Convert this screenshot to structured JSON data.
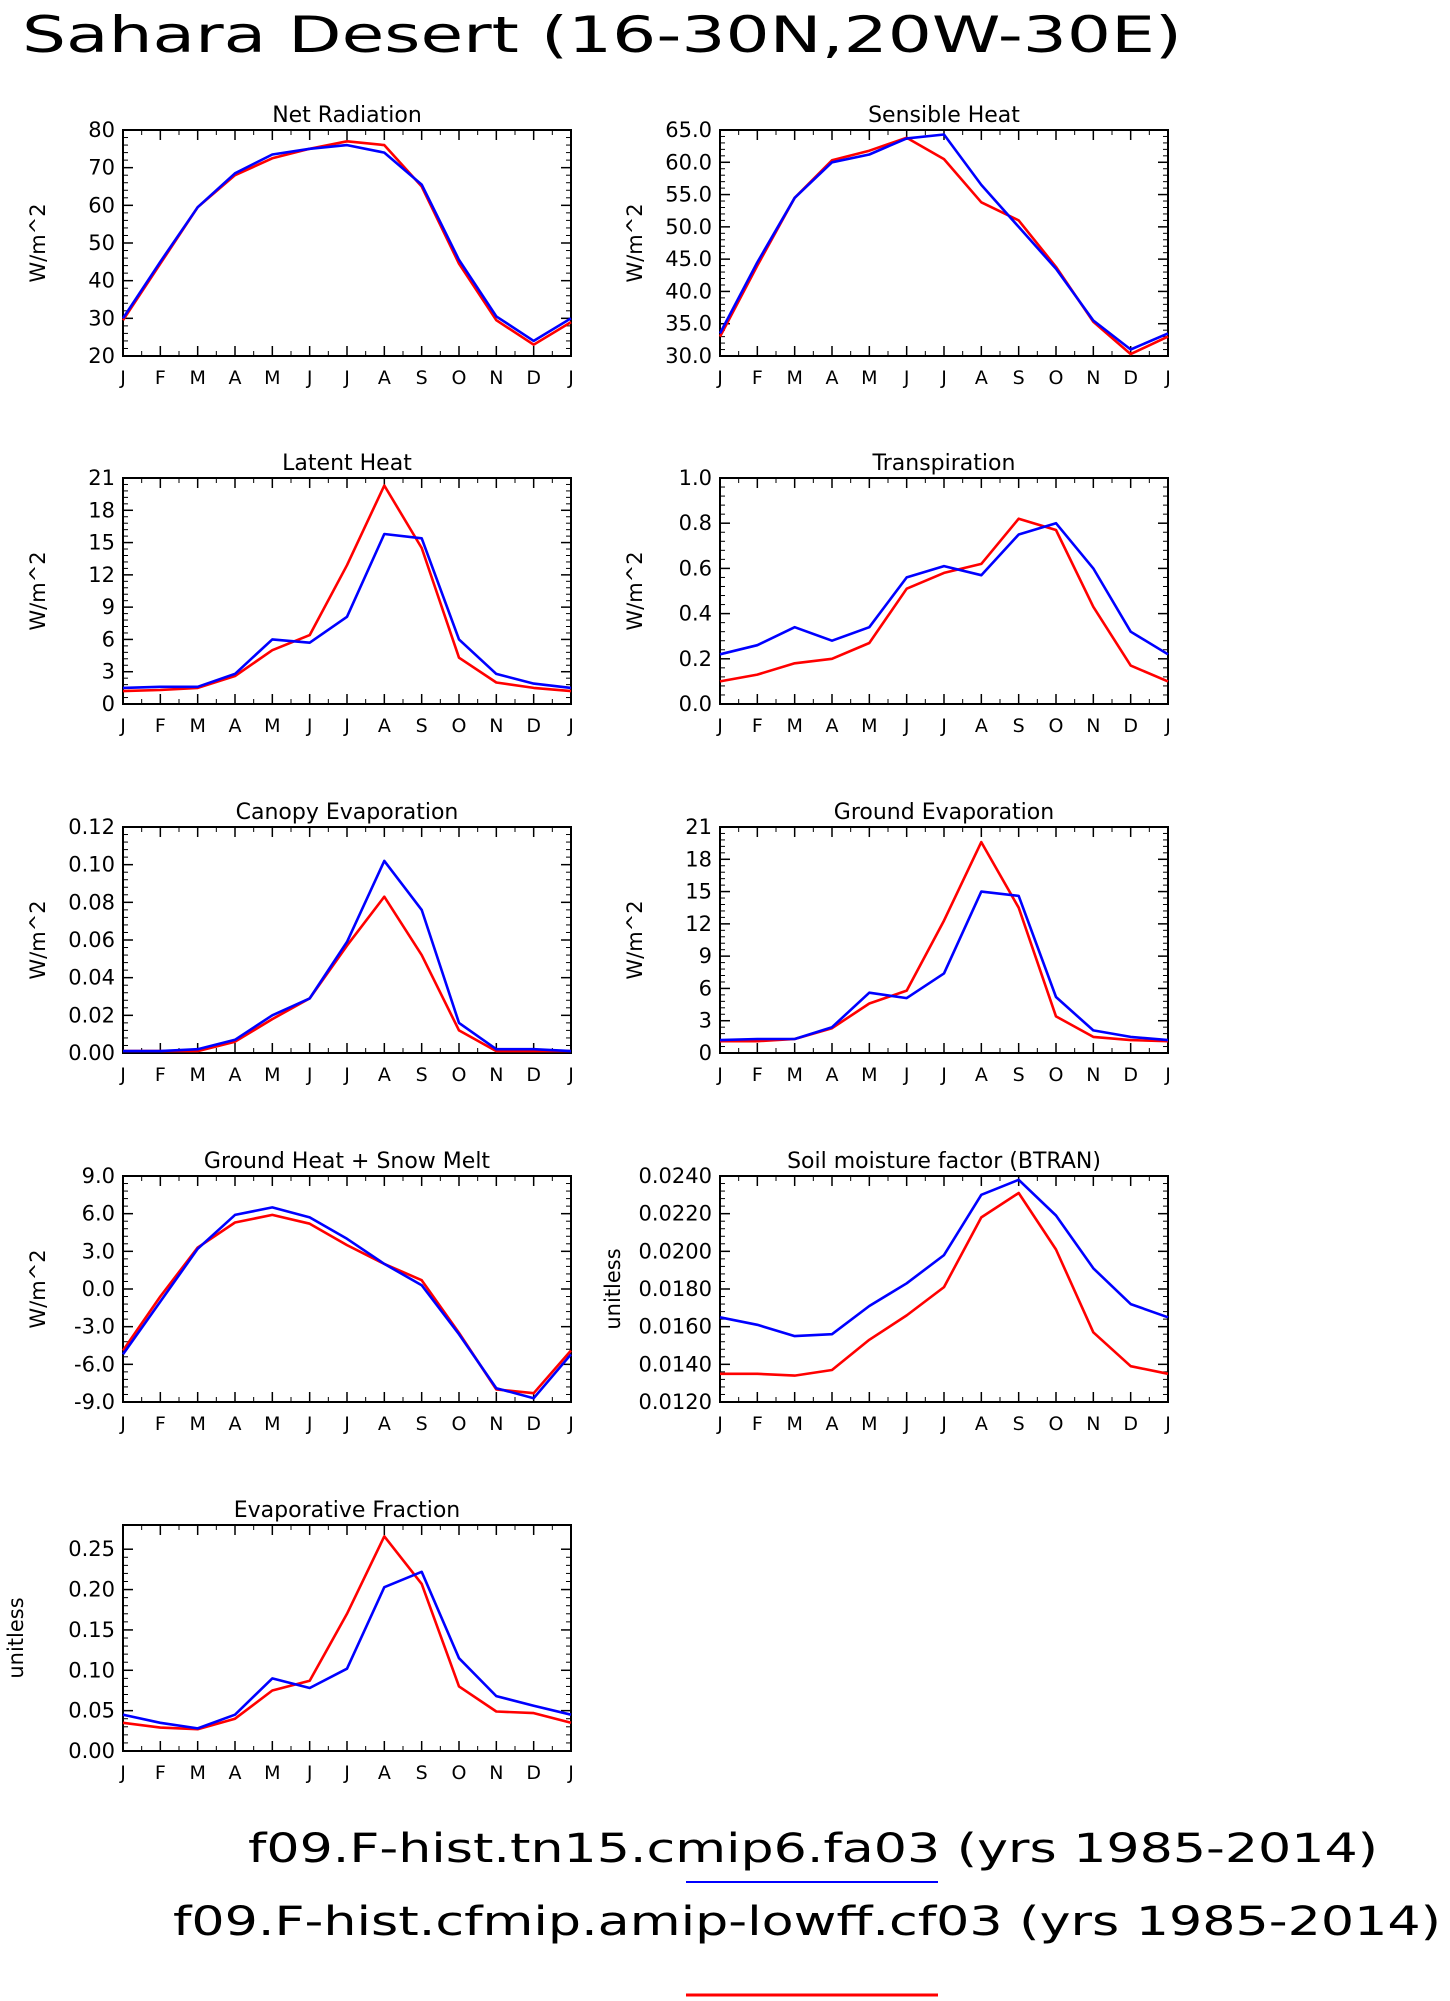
{
  "title": "Sahara Desert (16-30N,20W-30E)",
  "months": [
    "J",
    "F",
    "M",
    "A",
    "M",
    "J",
    "J",
    "A",
    "S",
    "O",
    "N",
    "D",
    "J"
  ],
  "legend": [
    {
      "label": "f09.F-hist.tn15.cmip6.fa03 (yrs 1985-2014)",
      "color": "#0000ff"
    },
    {
      "label": "f09.F-hist.cfmip.amip-lowff.cf03 (yrs 1985-2014)",
      "color": "#ff0000"
    }
  ],
  "colors": {
    "blue": "#0000ff",
    "red": "#ff0000"
  },
  "chart_data": [
    {
      "type": "line",
      "title": "Net Radiation",
      "ylabel": "W/m^2",
      "ylim": [
        20,
        80
      ],
      "ticks": [
        20,
        30,
        40,
        50,
        60,
        70,
        80
      ],
      "decimals": 0,
      "categories": [
        "J",
        "F",
        "M",
        "A",
        "M",
        "J",
        "J",
        "A",
        "S",
        "O",
        "N",
        "D",
        "J"
      ],
      "series": [
        {
          "color": "#0000ff",
          "values": [
            30,
            45,
            59.5,
            68.5,
            73.5,
            75,
            76,
            74,
            65.5,
            45.5,
            30.5,
            24,
            30
          ]
        },
        {
          "color": "#ff0000",
          "values": [
            29.5,
            44.5,
            59.5,
            68,
            72.5,
            75,
            77,
            76,
            65,
            44.5,
            29.5,
            23,
            29
          ]
        }
      ]
    },
    {
      "type": "line",
      "title": "Sensible Heat",
      "ylabel": "W/m^2",
      "ylim": [
        30,
        65
      ],
      "ticks": [
        30,
        35,
        40,
        45,
        50,
        55,
        60,
        65
      ],
      "decimals": 1,
      "categories": [
        "J",
        "F",
        "M",
        "A",
        "M",
        "J",
        "J",
        "A",
        "S",
        "O",
        "N",
        "D",
        "J"
      ],
      "series": [
        {
          "color": "#0000ff",
          "values": [
            33.5,
            44.5,
            54.5,
            60,
            61.2,
            63.7,
            64.3,
            56.5,
            50,
            43.5,
            35.5,
            31,
            33.5
          ]
        },
        {
          "color": "#ff0000",
          "values": [
            33,
            44,
            54.5,
            60.3,
            61.8,
            63.8,
            60.5,
            53.8,
            51,
            43.8,
            35.3,
            30.3,
            33
          ]
        }
      ]
    },
    {
      "type": "line",
      "title": "Latent Heat",
      "ylabel": "W/m^2",
      "ylim": [
        0,
        21
      ],
      "ticks": [
        0,
        3,
        6,
        9,
        12,
        15,
        18,
        21
      ],
      "decimals": 0,
      "categories": [
        "J",
        "F",
        "M",
        "A",
        "M",
        "J",
        "J",
        "A",
        "S",
        "O",
        "N",
        "D",
        "J"
      ],
      "series": [
        {
          "color": "#0000ff",
          "values": [
            1.5,
            1.6,
            1.6,
            2.8,
            6,
            5.7,
            8.1,
            15.8,
            15.4,
            6,
            2.8,
            1.9,
            1.5
          ]
        },
        {
          "color": "#ff0000",
          "values": [
            1.2,
            1.3,
            1.5,
            2.6,
            5,
            6.4,
            12.9,
            20.3,
            14.5,
            4.3,
            2,
            1.5,
            1.2
          ]
        }
      ]
    },
    {
      "type": "line",
      "title": "Transpiration",
      "ylabel": "W/m^2",
      "ylim": [
        0,
        1
      ],
      "ticks": [
        0,
        0.2,
        0.4,
        0.6,
        0.8,
        1.0
      ],
      "decimals": 1,
      "categories": [
        "J",
        "F",
        "M",
        "A",
        "M",
        "J",
        "J",
        "A",
        "S",
        "O",
        "N",
        "D",
        "J"
      ],
      "series": [
        {
          "color": "#0000ff",
          "values": [
            0.22,
            0.26,
            0.34,
            0.28,
            0.34,
            0.56,
            0.61,
            0.57,
            0.75,
            0.8,
            0.6,
            0.32,
            0.22
          ]
        },
        {
          "color": "#ff0000",
          "values": [
            0.1,
            0.13,
            0.18,
            0.2,
            0.27,
            0.51,
            0.58,
            0.62,
            0.82,
            0.77,
            0.43,
            0.17,
            0.1
          ]
        }
      ]
    },
    {
      "type": "line",
      "title": "Canopy Evaporation",
      "ylabel": "W/m^2",
      "ylim": [
        0,
        0.12
      ],
      "ticks": [
        0,
        0.02,
        0.04,
        0.06,
        0.08,
        0.1,
        0.12
      ],
      "decimals": 2,
      "categories": [
        "J",
        "F",
        "M",
        "A",
        "M",
        "J",
        "J",
        "A",
        "S",
        "O",
        "N",
        "D",
        "J"
      ],
      "series": [
        {
          "color": "#0000ff",
          "values": [
            0.001,
            0.001,
            0.002,
            0.007,
            0.02,
            0.029,
            0.059,
            0.102,
            0.076,
            0.016,
            0.002,
            0.002,
            0.001
          ]
        },
        {
          "color": "#ff0000",
          "values": [
            0.001,
            0.001,
            0.001,
            0.006,
            0.018,
            0.029,
            0.057,
            0.083,
            0.052,
            0.012,
            0.001,
            0.001,
            0.001
          ]
        }
      ]
    },
    {
      "type": "line",
      "title": "Ground Evaporation",
      "ylabel": "W/m^2",
      "ylim": [
        0,
        21
      ],
      "ticks": [
        0,
        3,
        6,
        9,
        12,
        15,
        18,
        21
      ],
      "decimals": 0,
      "categories": [
        "J",
        "F",
        "M",
        "A",
        "M",
        "J",
        "J",
        "A",
        "S",
        "O",
        "N",
        "D",
        "J"
      ],
      "series": [
        {
          "color": "#0000ff",
          "values": [
            1.2,
            1.3,
            1.3,
            2.4,
            5.6,
            5.1,
            7.4,
            15,
            14.6,
            5.2,
            2.1,
            1.5,
            1.2
          ]
        },
        {
          "color": "#ff0000",
          "values": [
            1.1,
            1.1,
            1.3,
            2.3,
            4.6,
            5.8,
            12.3,
            19.6,
            13.5,
            3.4,
            1.5,
            1.2,
            1.1
          ]
        }
      ]
    },
    {
      "type": "line",
      "title": "Ground Heat + Snow Melt",
      "ylabel": "W/m^2",
      "ylim": [
        -9,
        9
      ],
      "ticks": [
        -9,
        -6,
        -3,
        0,
        3,
        6,
        9
      ],
      "decimals": 1,
      "categories": [
        "J",
        "F",
        "M",
        "A",
        "M",
        "J",
        "J",
        "A",
        "S",
        "O",
        "N",
        "D",
        "J"
      ],
      "series": [
        {
          "color": "#0000ff",
          "values": [
            -5.2,
            -1,
            3.2,
            5.9,
            6.5,
            5.7,
            4,
            2,
            0.3,
            -3.6,
            -7.9,
            -8.7,
            -5.2
          ]
        },
        {
          "color": "#ff0000",
          "values": [
            -4.9,
            -0.6,
            3.3,
            5.3,
            5.9,
            5.2,
            3.5,
            2,
            0.7,
            -3.5,
            -8,
            -8.3,
            -4.9
          ]
        }
      ]
    },
    {
      "type": "line",
      "title": "Soil moisture factor (BTRAN)",
      "ylabel": "unitless",
      "ylim": [
        0.012,
        0.024
      ],
      "ticks": [
        0.012,
        0.014,
        0.016,
        0.018,
        0.02,
        0.022,
        0.024
      ],
      "decimals": 4,
      "categories": [
        "J",
        "F",
        "M",
        "A",
        "M",
        "J",
        "J",
        "A",
        "S",
        "O",
        "N",
        "D",
        "J"
      ],
      "series": [
        {
          "color": "#0000ff",
          "values": [
            0.0165,
            0.0161,
            0.0155,
            0.0156,
            0.0171,
            0.0183,
            0.0198,
            0.023,
            0.0238,
            0.0219,
            0.0191,
            0.0172,
            0.0165
          ]
        },
        {
          "color": "#ff0000",
          "values": [
            0.0135,
            0.0135,
            0.0134,
            0.0137,
            0.0153,
            0.0166,
            0.0181,
            0.0218,
            0.0231,
            0.0201,
            0.0157,
            0.0139,
            0.0135
          ]
        }
      ]
    },
    {
      "type": "line",
      "title": "Evaporative Fraction",
      "ylabel": "unitless",
      "ylim": [
        0,
        0.28
      ],
      "ticks": [
        0,
        0.05,
        0.1,
        0.15,
        0.2,
        0.25
      ],
      "decimals": 2,
      "categories": [
        "J",
        "F",
        "M",
        "A",
        "M",
        "J",
        "J",
        "A",
        "S",
        "O",
        "N",
        "D",
        "J"
      ],
      "series": [
        {
          "color": "#0000ff",
          "values": [
            0.045,
            0.035,
            0.028,
            0.045,
            0.09,
            0.078,
            0.102,
            0.203,
            0.222,
            0.115,
            0.068,
            0.056,
            0.045
          ]
        },
        {
          "color": "#ff0000",
          "values": [
            0.035,
            0.029,
            0.027,
            0.04,
            0.075,
            0.087,
            0.17,
            0.266,
            0.207,
            0.08,
            0.049,
            0.047,
            0.035
          ]
        }
      ]
    }
  ]
}
